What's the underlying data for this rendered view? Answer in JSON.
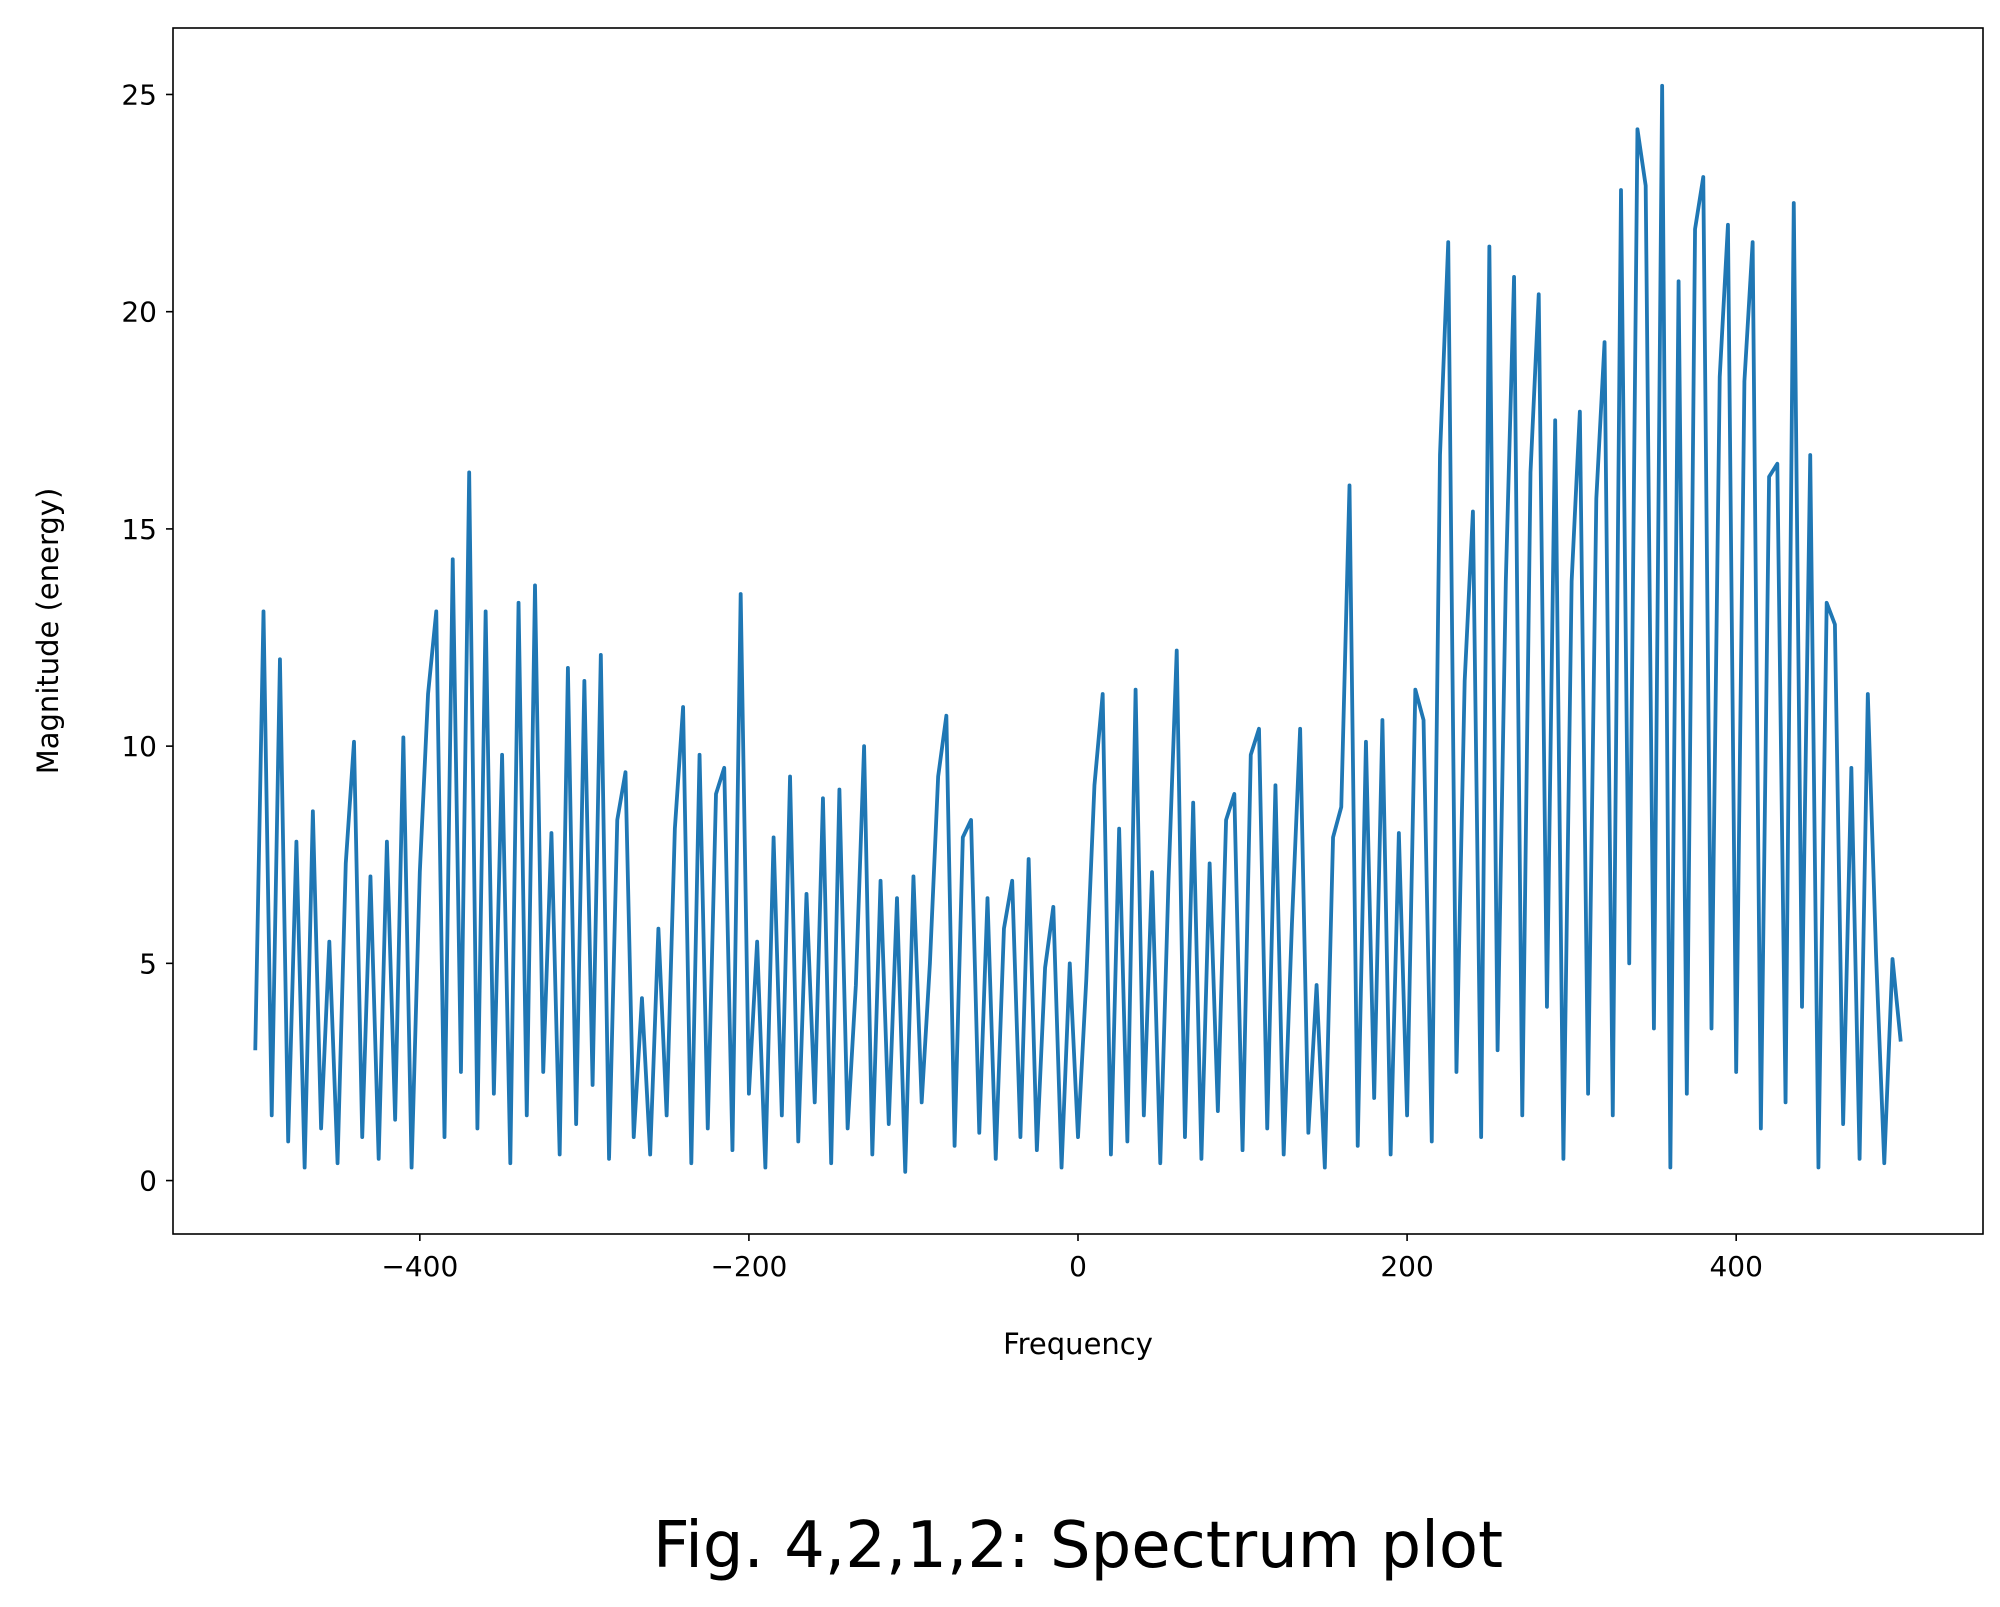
{
  "chart_data": {
    "type": "line",
    "xlabel": "Frequency",
    "ylabel": "Magnitude (energy)",
    "caption": "Fig. 4,2,1,2: Spectrum plot",
    "x": [
      -500,
      -495,
      -490,
      -485,
      -480,
      -475,
      -470,
      -465,
      -460,
      -455,
      -450,
      -445,
      -440,
      -435,
      -430,
      -425,
      -420,
      -415,
      -410,
      -405,
      -400,
      -395,
      -390,
      -385,
      -380,
      -375,
      -370,
      -365,
      -360,
      -355,
      -350,
      -345,
      -340,
      -335,
      -330,
      -325,
      -320,
      -315,
      -310,
      -305,
      -300,
      -295,
      -290,
      -285,
      -280,
      -275,
      -270,
      -265,
      -260,
      -255,
      -250,
      -245,
      -240,
      -235,
      -230,
      -225,
      -220,
      -215,
      -210,
      -205,
      -200,
      -195,
      -190,
      -185,
      -180,
      -175,
      -170,
      -165,
      -160,
      -155,
      -150,
      -145,
      -140,
      -135,
      -130,
      -125,
      -120,
      -115,
      -110,
      -105,
      -100,
      -95,
      -90,
      -85,
      -80,
      -75,
      -70,
      -65,
      -60,
      -55,
      -50,
      -45,
      -40,
      -35,
      -30,
      -25,
      -20,
      -15,
      -10,
      -5,
      0,
      5,
      10,
      15,
      20,
      25,
      30,
      35,
      40,
      45,
      50,
      55,
      60,
      65,
      70,
      75,
      80,
      85,
      90,
      95,
      100,
      105,
      110,
      115,
      120,
      125,
      130,
      135,
      140,
      145,
      150,
      155,
      160,
      165,
      170,
      175,
      180,
      185,
      190,
      195,
      200,
      205,
      210,
      215,
      220,
      225,
      230,
      235,
      240,
      245,
      250,
      255,
      260,
      265,
      270,
      275,
      280,
      285,
      290,
      295,
      300,
      305,
      310,
      315,
      320,
      325,
      330,
      335,
      340,
      345,
      350,
      355,
      360,
      365,
      370,
      375,
      380,
      385,
      390,
      395,
      400,
      405,
      410,
      415,
      420,
      425,
      430,
      435,
      440,
      445,
      450,
      455,
      460,
      465,
      470,
      475,
      480,
      485,
      490,
      495,
      500
    ],
    "series": [
      {
        "color": "#1f77b4",
        "values": [
          3,
          13.1,
          1.5,
          12,
          0.9,
          7.8,
          0.3,
          8.5,
          1.2,
          5.5,
          0.4,
          7.3,
          10.1,
          1.0,
          7.0,
          0.5,
          7.8,
          1.4,
          10.2,
          0.3,
          7.1,
          11.2,
          13.1,
          1.0,
          14.3,
          2.5,
          16.3,
          1.2,
          13.1,
          2.0,
          9.8,
          0.4,
          13.3,
          1.5,
          13.7,
          2.5,
          8.0,
          0.6,
          11.8,
          1.3,
          11.5,
          2.2,
          12.1,
          0.5,
          8.3,
          9.4,
          1.0,
          4.2,
          0.6,
          5.8,
          1.5,
          8.1,
          10.9,
          0.4,
          9.8,
          1.2,
          8.9,
          9.5,
          0.7,
          13.5,
          2.0,
          5.5,
          0.3,
          7.9,
          1.5,
          9.3,
          0.9,
          6.6,
          1.8,
          8.8,
          0.4,
          9.0,
          1.2,
          4.5,
          10.0,
          0.6,
          6.9,
          1.3,
          6.5,
          0.2,
          7.0,
          1.8,
          5.0,
          9.3,
          10.7,
          0.8,
          7.9,
          8.3,
          1.1,
          6.5,
          0.5,
          5.8,
          6.9,
          1.0,
          7.4,
          0.7,
          4.9,
          6.3,
          0.3,
          5.0,
          1.0,
          4.6,
          9.1,
          11.2,
          0.6,
          8.1,
          0.9,
          11.3,
          1.5,
          7.1,
          0.4,
          6.9,
          12.2,
          1.0,
          8.7,
          0.5,
          7.3,
          1.6,
          8.3,
          8.9,
          0.7,
          9.8,
          10.4,
          1.2,
          9.1,
          0.6,
          5.9,
          10.4,
          1.1,
          4.5,
          0.3,
          7.9,
          8.6,
          16.0,
          0.8,
          10.1,
          1.9,
          10.6,
          0.6,
          8.0,
          1.5,
          11.3,
          10.6,
          0.9,
          16.7,
          21.6,
          2.5,
          11.5,
          15.4,
          1.0,
          21.5,
          3.0,
          13.8,
          20.8,
          1.5,
          16.3,
          20.4,
          4.0,
          17.5,
          0.5,
          13.8,
          17.7,
          2.0,
          15.7,
          19.3,
          1.5,
          22.8,
          5.0,
          24.2,
          22.9,
          3.5,
          25.2,
          0.3,
          20.7,
          2.0,
          21.9,
          23.1,
          3.5,
          18.5,
          22.0,
          2.5,
          18.4,
          21.6,
          1.2,
          16.2,
          16.5,
          1.8,
          22.5,
          4.0,
          16.7,
          0.3,
          13.3,
          12.8,
          1.3,
          9.5,
          0.5,
          11.2,
          5.2,
          0.4,
          5.1,
          3.2
        ]
      }
    ],
    "xlim": [
      -550,
      550
    ],
    "ylim": [
      -1.23,
      26.53
    ],
    "xticks": [
      {
        "value": -400,
        "label": "−400"
      },
      {
        "value": -200,
        "label": "−200"
      },
      0,
      200,
      400
    ],
    "yticks": [
      0,
      5,
      10,
      15,
      20,
      25
    ],
    "grid": false
  }
}
